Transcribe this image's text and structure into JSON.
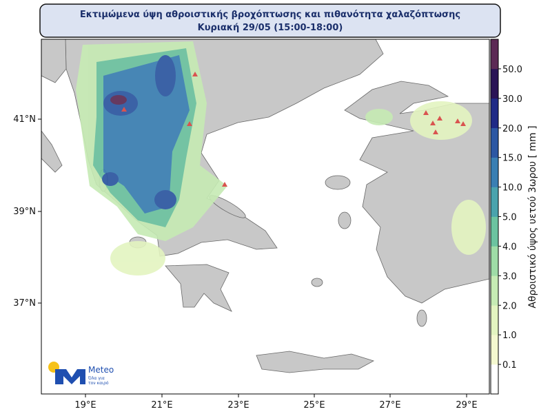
{
  "header": {
    "title": "Εκτιμώμενα ύψη αθροιστικής βροχόπτωσης και πιθανότητα χαλαζόπτωσης",
    "subtitle": "Κυριακή 29/05 (15:00-18:00)"
  },
  "map": {
    "lon_labels": [
      "19°E",
      "21°E",
      "23°E",
      "25°E",
      "27°E",
      "29°E"
    ],
    "lat_labels": [
      "41°N",
      "39°N",
      "37°N"
    ]
  },
  "legend": {
    "title": "Αθροιστικό ύψος υετού 3ωρου [ mm ]",
    "labels": [
      "0.1",
      "1.0",
      "2.0",
      "3.0",
      "4.0",
      "5.0",
      "10.0",
      "15.0",
      "20.0",
      "30.0",
      "50.0"
    ],
    "colors": [
      "#ffffff",
      "#f4f8cf",
      "#e3f4c0",
      "#c6ebb4",
      "#9fdca7",
      "#6cc3a0",
      "#4aa3ad",
      "#3a7fb3",
      "#2c57a3",
      "#1f2a86",
      "#2a1456",
      "#5c2a55"
    ]
  },
  "logo": {
    "name": "Meteo",
    "tagline": [
      "Όλα για",
      "τον καιρό"
    ]
  }
}
